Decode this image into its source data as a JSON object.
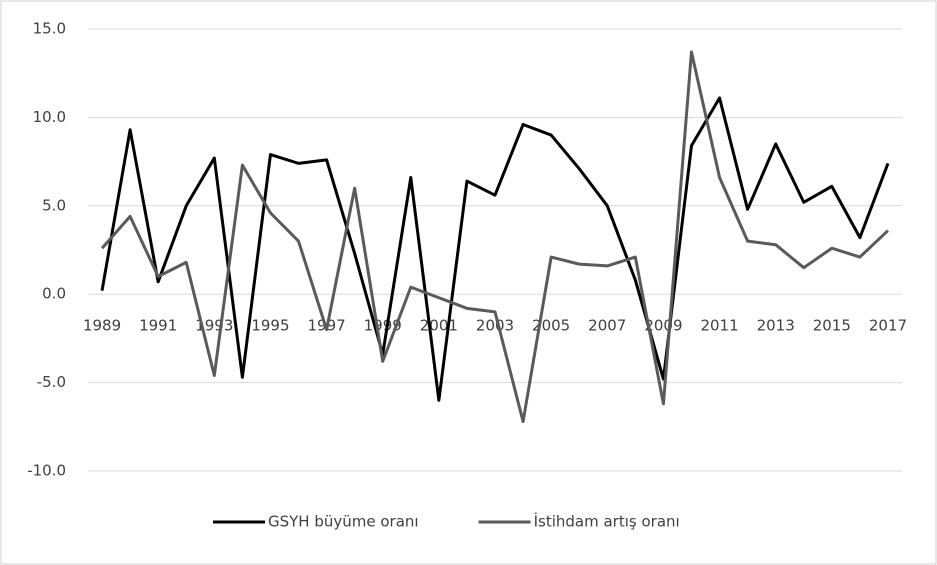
{
  "chart_data": {
    "type": "line",
    "categories": [
      "1989",
      null,
      "1991",
      null,
      "1993",
      null,
      "1995",
      null,
      "1997",
      null,
      "1999",
      null,
      "2001",
      null,
      "2003",
      null,
      "2005",
      null,
      "2007",
      null,
      "2009",
      null,
      "2011",
      null,
      "2013",
      null,
      "2015",
      null,
      "2017"
    ],
    "series": [
      {
        "name": "GSYH büyüme oranı",
        "color": "#000000",
        "values": [
          0.2,
          9.3,
          0.7,
          5.0,
          7.7,
          -4.7,
          7.9,
          7.4,
          7.6,
          2.3,
          -3.4,
          6.6,
          -6.0,
          6.4,
          5.6,
          9.6,
          9.0,
          7.1,
          5.0,
          0.8,
          -4.8,
          8.4,
          11.1,
          4.8,
          8.5,
          5.2,
          6.1,
          3.2,
          7.4
        ]
      },
      {
        "name": "İstihdam artış oranı",
        "color": "#5a5a5a",
        "values": [
          2.6,
          4.4,
          1.0,
          1.8,
          -4.6,
          7.3,
          4.6,
          3.0,
          -2.0,
          6.0,
          -3.8,
          0.4,
          -0.2,
          -0.8,
          -1.0,
          -7.2,
          2.1,
          1.7,
          1.6,
          2.1,
          -6.2,
          13.7,
          6.6,
          3.0,
          2.8,
          1.5,
          2.6,
          2.1,
          3.6
        ]
      }
    ],
    "ylim": [
      -10,
      15
    ],
    "yticks": [
      {
        "value": -10,
        "label": "-10.0"
      },
      {
        "value": -5,
        "label": "-5.0"
      },
      {
        "value": 0,
        "label": "0.0"
      },
      {
        "value": 5,
        "label": "5.0"
      },
      {
        "value": 10,
        "label": "10.0"
      },
      {
        "value": 15,
        "label": "15.0"
      }
    ],
    "grid": true,
    "legend": "bottom"
  }
}
